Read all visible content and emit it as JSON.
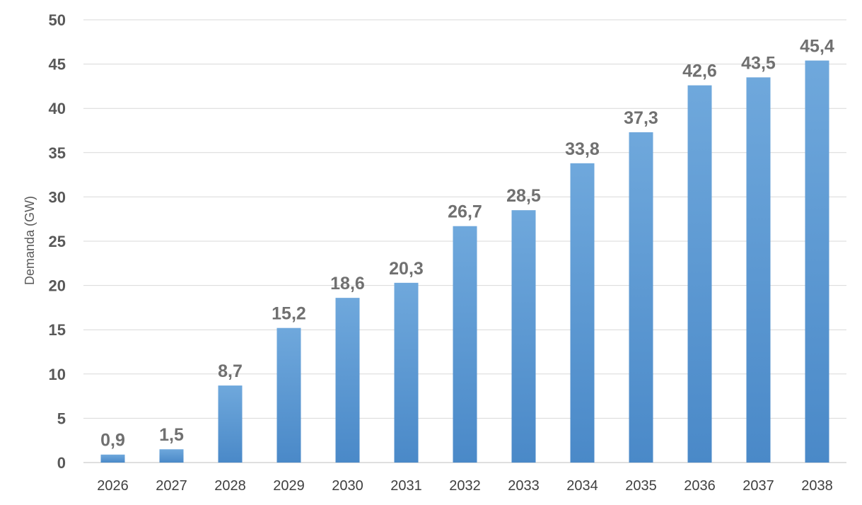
{
  "chart_data": {
    "type": "bar",
    "title": "",
    "xlabel": "",
    "ylabel": "Demanda (GW)",
    "ylim": [
      0,
      50
    ],
    "yticks": [
      0,
      5,
      10,
      15,
      20,
      25,
      30,
      35,
      40,
      45,
      50
    ],
    "grid": true,
    "legend": "none",
    "bar_color": "#5b9bd5",
    "bar_color_top": "#6fa8dc",
    "bar_color_bottom": "#4a89c8",
    "categories": [
      "2026",
      "2027",
      "2028",
      "2029",
      "2030",
      "2031",
      "2032",
      "2033",
      "2034",
      "2035",
      "2036",
      "2037",
      "2038"
    ],
    "values": [
      0.9,
      1.5,
      8.7,
      15.2,
      18.6,
      20.3,
      26.7,
      28.5,
      33.8,
      37.3,
      42.6,
      43.5,
      45.4
    ],
    "data_labels": [
      "0,9",
      "1,5",
      "8,7",
      "15,2",
      "18,6",
      "20,3",
      "26,7",
      "28,5",
      "33,8",
      "37,3",
      "42,6",
      "43,5",
      "45,4"
    ]
  }
}
